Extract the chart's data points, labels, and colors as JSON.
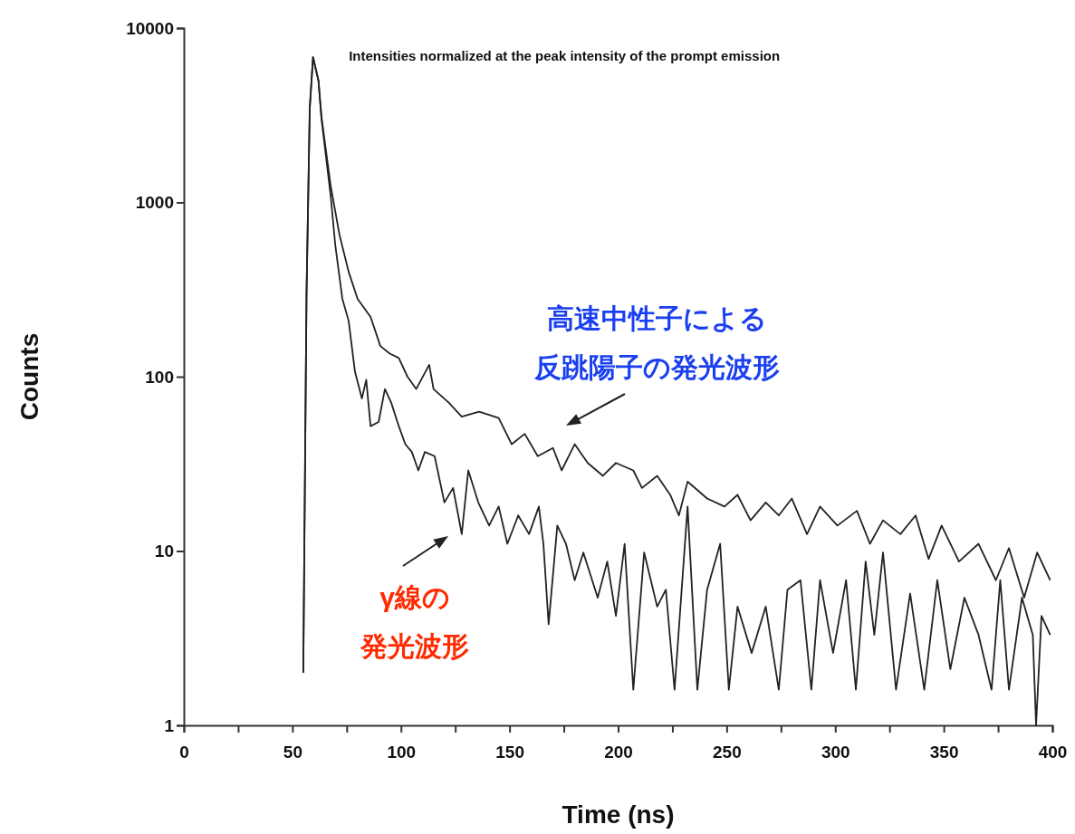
{
  "chart_data": {
    "type": "line",
    "xlabel": "Time (ns)",
    "ylabel": "Counts",
    "log": "y",
    "grid": false,
    "marker": "none",
    "line_style": "solid",
    "xlim": [
      0,
      400
    ],
    "ylim": [
      1,
      10000
    ],
    "xticks": [
      0,
      {
        "value": 25,
        "label": null
      },
      50,
      {
        "value": 75,
        "label": null
      },
      100,
      {
        "value": 125,
        "label": null
      },
      150,
      {
        "value": 175,
        "label": null
      },
      200,
      {
        "value": 225,
        "label": null
      },
      250,
      {
        "value": 275,
        "label": null
      },
      300,
      {
        "value": 325,
        "label": null
      },
      350,
      {
        "value": 375,
        "label": null
      },
      400
    ],
    "yticks": [
      1,
      10,
      100,
      1000,
      10000
    ],
    "series": [
      {
        "color": "#222222",
        "x": [
          55,
          56.5,
          58,
          59.5,
          62,
          63.4,
          67.6,
          71.7,
          75.9,
          80,
          86,
          90.5,
          94.7,
          99,
          103,
          107,
          113,
          115,
          122,
          128,
          136,
          145,
          151,
          157,
          163,
          170,
          174,
          180,
          186,
          193,
          199,
          207,
          211,
          218,
          224,
          228,
          232,
          241,
          249,
          255,
          261,
          268,
          274,
          280,
          287,
          293,
          301,
          310,
          316,
          322,
          330,
          337,
          343,
          349,
          357,
          366,
          374,
          380,
          387,
          393,
          399
        ],
        "values": [
          2,
          300,
          3500,
          6800,
          5000,
          3090,
          1250,
          650,
          400,
          280,
          220,
          150,
          136,
          128,
          100,
          85,
          117,
          85,
          71,
          59,
          63,
          58,
          41,
          47,
          35,
          39,
          29,
          41,
          32,
          27,
          32,
          29,
          23,
          27,
          21,
          16,
          25,
          20,
          18,
          21,
          15,
          19,
          16,
          20,
          12.5,
          18,
          14,
          17,
          11,
          15,
          12.5,
          16,
          9,
          14,
          8.7,
          11,
          6.8,
          10.4,
          5.4,
          9.8,
          6.8
        ]
      },
      {
        "color": "#222222",
        "x": [
          55,
          56.5,
          58,
          59.5,
          62,
          63.4,
          67.6,
          69.7,
          73,
          75.9,
          78.8,
          82,
          84,
          86,
          89.7,
          92.6,
          95.5,
          99,
          102,
          105,
          108,
          111,
          115.5,
          120,
          124,
          128,
          131,
          135.6,
          140.6,
          145,
          149,
          154,
          159,
          163.5,
          165.6,
          168,
          172,
          176,
          180,
          184,
          190.6,
          195,
          199,
          203,
          207,
          212,
          218,
          222,
          226,
          232,
          236.5,
          241,
          247,
          251,
          255,
          261.5,
          268,
          274,
          278,
          284,
          289,
          293,
          299,
          305,
          309.5,
          314,
          318,
          322,
          328,
          334.5,
          341,
          347,
          353,
          359.5,
          366,
          372,
          376,
          380,
          386,
          391,
          392.5,
          395,
          399
        ],
        "values": [
          2,
          300,
          3500,
          6800,
          5000,
          3000,
          1100,
          575,
          280,
          209,
          107,
          75,
          96,
          52,
          55,
          85,
          71,
          52,
          41,
          37,
          29,
          37,
          35,
          19,
          23,
          12.5,
          29,
          19,
          14,
          18,
          11,
          16,
          12.5,
          18,
          11,
          3.8,
          14,
          11,
          6.8,
          9.8,
          5.4,
          8.7,
          4.25,
          11,
          1.6,
          9.8,
          4.8,
          6,
          1.6,
          18,
          1.6,
          6,
          11,
          1.6,
          4.8,
          2.6,
          4.8,
          1.6,
          6,
          6.8,
          1.6,
          6.8,
          2.6,
          6.8,
          1.6,
          8.7,
          3.3,
          9.8,
          1.6,
          5.7,
          1.6,
          6.8,
          2.1,
          5.4,
          3.3,
          1.6,
          6.8,
          1.6,
          5.4,
          3.3,
          1,
          4.25,
          3.3
        ]
      }
    ],
    "annotations": [
      "Intensities normalized at the peak intensity of the prompt emission",
      "高速中性子による反跳陽子の発光波形",
      "γ線の発光波形"
    ]
  }
}
